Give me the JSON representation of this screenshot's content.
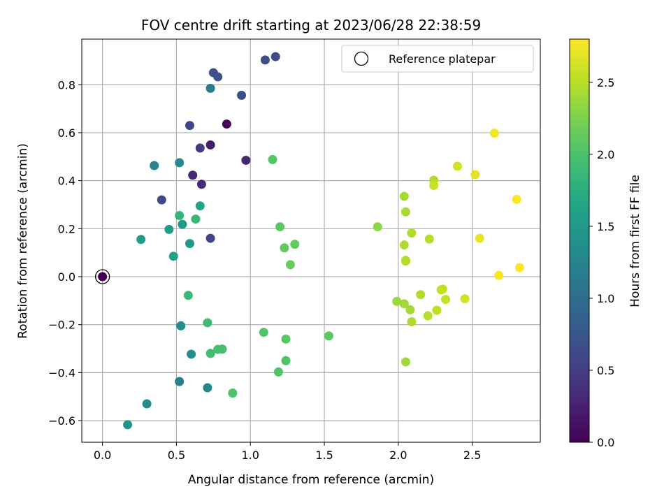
{
  "chart_data": {
    "type": "scatter",
    "title": "FOV centre drift starting at 2023/06/28 22:38:59",
    "xlabel": "Angular distance from reference (arcmin)",
    "ylabel": "Rotation from reference (arcmin)",
    "xlim": [
      -0.14,
      2.96
    ],
    "ylim": [
      -0.69,
      0.99
    ],
    "xticks": [
      0.0,
      0.5,
      1.0,
      1.5,
      2.0,
      2.5
    ],
    "xtick_labels": [
      "0.0",
      "0.5",
      "1.0",
      "1.5",
      "2.0",
      "2.5"
    ],
    "yticks": [
      -0.6,
      -0.4,
      -0.2,
      0.0,
      0.2,
      0.4,
      0.6,
      0.8
    ],
    "ytick_labels": [
      "−0.6",
      "−0.4",
      "−0.2",
      "0.0",
      "0.2",
      "0.4",
      "0.6",
      "0.8"
    ],
    "grid": true,
    "legend": {
      "placement": "top-right",
      "label": "Reference platepar"
    },
    "reference_point": {
      "x": 0.0,
      "y": 0.0,
      "hours": 0.0
    },
    "colorbar": {
      "label": "Hours from first FF file",
      "range": [
        0.0,
        2.8
      ],
      "ticks": [
        0.0,
        0.5,
        1.0,
        1.5,
        2.0,
        2.5
      ],
      "tick_labels": [
        "0.0",
        "0.5",
        "1.0",
        "1.5",
        "2.0",
        "2.5"
      ],
      "colormap": "viridis"
    },
    "points": [
      {
        "x": 0.0,
        "y": 0.0,
        "hours": 0.0
      },
      {
        "x": 0.84,
        "y": 0.636,
        "hours": 0.03
      },
      {
        "x": 0.73,
        "y": 0.549,
        "hours": 0.22
      },
      {
        "x": 0.97,
        "y": 0.485,
        "hours": 0.3
      },
      {
        "x": 0.61,
        "y": 0.423,
        "hours": 0.32
      },
      {
        "x": 0.67,
        "y": 0.385,
        "hours": 0.34
      },
      {
        "x": 0.66,
        "y": 0.536,
        "hours": 0.48
      },
      {
        "x": 0.59,
        "y": 0.63,
        "hours": 0.58
      },
      {
        "x": 0.4,
        "y": 0.32,
        "hours": 0.62
      },
      {
        "x": 0.73,
        "y": 0.16,
        "hours": 0.58
      },
      {
        "x": 0.94,
        "y": 0.756,
        "hours": 0.66
      },
      {
        "x": 0.75,
        "y": 0.85,
        "hours": 0.68
      },
      {
        "x": 0.78,
        "y": 0.833,
        "hours": 0.7
      },
      {
        "x": 1.1,
        "y": 0.903,
        "hours": 0.66
      },
      {
        "x": 1.17,
        "y": 0.917,
        "hours": 0.64
      },
      {
        "x": 0.73,
        "y": 0.785,
        "hours": 1.15
      },
      {
        "x": 0.35,
        "y": 0.463,
        "hours": 1.28
      },
      {
        "x": 0.52,
        "y": 0.475,
        "hours": 1.32
      },
      {
        "x": 0.52,
        "y": -0.437,
        "hours": 1.2
      },
      {
        "x": 0.71,
        "y": -0.463,
        "hours": 1.3
      },
      {
        "x": 0.3,
        "y": -0.53,
        "hours": 1.35
      },
      {
        "x": 0.17,
        "y": -0.617,
        "hours": 1.45
      },
      {
        "x": 0.53,
        "y": -0.205,
        "hours": 1.35
      },
      {
        "x": 0.6,
        "y": -0.323,
        "hours": 1.38
      },
      {
        "x": 0.54,
        "y": 0.218,
        "hours": 1.5
      },
      {
        "x": 0.59,
        "y": 0.138,
        "hours": 1.5
      },
      {
        "x": 0.45,
        "y": 0.197,
        "hours": 1.52
      },
      {
        "x": 0.26,
        "y": 0.155,
        "hours": 1.58
      },
      {
        "x": 0.48,
        "y": 0.085,
        "hours": 1.62
      },
      {
        "x": 0.66,
        "y": 0.295,
        "hours": 1.66
      },
      {
        "x": 0.52,
        "y": 0.255,
        "hours": 1.82
      },
      {
        "x": 0.63,
        "y": 0.24,
        "hours": 1.86
      },
      {
        "x": 0.58,
        "y": -0.078,
        "hours": 1.88
      },
      {
        "x": 0.71,
        "y": -0.192,
        "hours": 1.9
      },
      {
        "x": 0.73,
        "y": -0.32,
        "hours": 1.94
      },
      {
        "x": 0.78,
        "y": -0.303,
        "hours": 1.96
      },
      {
        "x": 0.81,
        "y": -0.302,
        "hours": 1.97
      },
      {
        "x": 0.88,
        "y": -0.485,
        "hours": 2.0
      },
      {
        "x": 1.09,
        "y": -0.232,
        "hours": 2.03
      },
      {
        "x": 1.19,
        "y": -0.397,
        "hours": 2.03
      },
      {
        "x": 1.24,
        "y": -0.35,
        "hours": 2.02
      },
      {
        "x": 1.24,
        "y": -0.26,
        "hours": 2.05
      },
      {
        "x": 1.53,
        "y": -0.247,
        "hours": 2.08
      },
      {
        "x": 1.15,
        "y": 0.488,
        "hours": 2.05
      },
      {
        "x": 1.2,
        "y": 0.208,
        "hours": 2.08
      },
      {
        "x": 1.23,
        "y": 0.12,
        "hours": 2.1
      },
      {
        "x": 1.3,
        "y": 0.135,
        "hours": 2.12
      },
      {
        "x": 1.27,
        "y": 0.05,
        "hours": 2.15
      },
      {
        "x": 1.86,
        "y": 0.208,
        "hours": 2.32
      },
      {
        "x": 1.99,
        "y": -0.103,
        "hours": 2.38
      },
      {
        "x": 2.04,
        "y": -0.113,
        "hours": 2.4
      },
      {
        "x": 2.05,
        "y": -0.355,
        "hours": 2.4
      },
      {
        "x": 2.08,
        "y": -0.138,
        "hours": 2.42
      },
      {
        "x": 2.09,
        "y": -0.188,
        "hours": 2.45
      },
      {
        "x": 2.04,
        "y": 0.335,
        "hours": 2.42
      },
      {
        "x": 2.05,
        "y": 0.27,
        "hours": 2.43
      },
      {
        "x": 2.04,
        "y": 0.132,
        "hours": 2.45
      },
      {
        "x": 2.05,
        "y": 0.068,
        "hours": 2.46
      },
      {
        "x": 2.05,
        "y": 0.065,
        "hours": 2.48
      },
      {
        "x": 2.09,
        "y": 0.182,
        "hours": 2.46
      },
      {
        "x": 2.15,
        "y": -0.075,
        "hours": 2.48
      },
      {
        "x": 2.2,
        "y": -0.163,
        "hours": 2.5
      },
      {
        "x": 2.21,
        "y": 0.157,
        "hours": 2.5
      },
      {
        "x": 2.24,
        "y": 0.402,
        "hours": 2.48
      },
      {
        "x": 2.24,
        "y": 0.38,
        "hours": 2.58
      },
      {
        "x": 2.26,
        "y": -0.14,
        "hours": 2.52
      },
      {
        "x": 2.29,
        "y": -0.055,
        "hours": 2.52
      },
      {
        "x": 2.3,
        "y": -0.052,
        "hours": 2.54
      },
      {
        "x": 2.32,
        "y": -0.095,
        "hours": 2.56
      },
      {
        "x": 2.4,
        "y": 0.46,
        "hours": 2.62
      },
      {
        "x": 2.45,
        "y": -0.092,
        "hours": 2.62
      },
      {
        "x": 2.52,
        "y": 0.425,
        "hours": 2.68
      },
      {
        "x": 2.55,
        "y": 0.16,
        "hours": 2.7
      },
      {
        "x": 2.65,
        "y": 0.598,
        "hours": 2.76
      },
      {
        "x": 2.68,
        "y": 0.005,
        "hours": 2.78
      },
      {
        "x": 2.8,
        "y": 0.322,
        "hours": 2.8
      },
      {
        "x": 2.82,
        "y": 0.038,
        "hours": 2.8
      }
    ]
  }
}
